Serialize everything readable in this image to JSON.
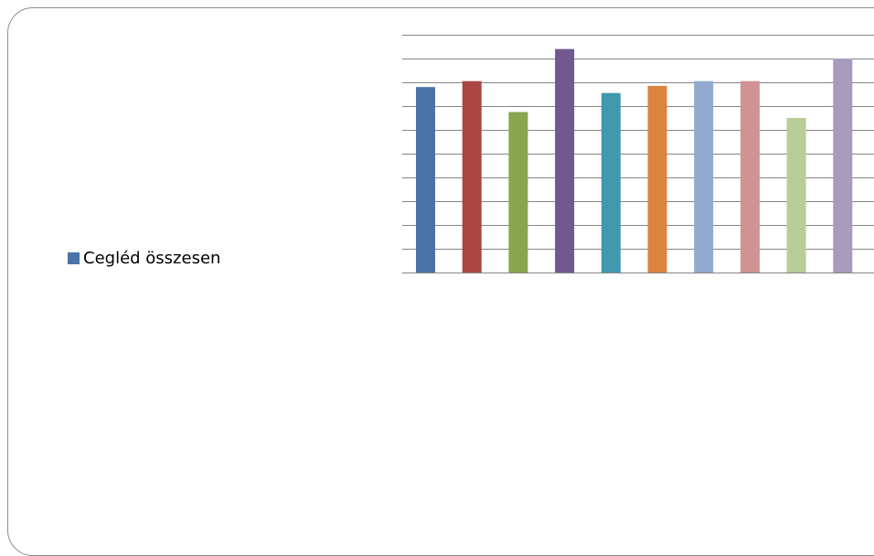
{
  "chart_data": {
    "type": "bar",
    "categories": [
      "",
      "",
      "",
      "",
      "",
      "",
      "",
      "",
      "",
      ""
    ],
    "series": [
      {
        "name": "Cegléd összesen",
        "values": [
          7.8,
          8.05,
          6.75,
          9.4,
          7.55,
          7.85,
          8.05,
          8.05,
          6.5,
          9.0
        ]
      }
    ],
    "bar_colors": [
      "#4a73a8",
      "#aa4643",
      "#89a54e",
      "#71588f",
      "#4198af",
      "#db843d",
      "#93a9cf",
      "#d19392",
      "#b9cd96",
      "#a99bbd"
    ],
    "legend_color": "#4a73a8",
    "grid_color": "#868686",
    "ylim": [
      0,
      10
    ],
    "gridlines": 10,
    "grid": true,
    "legend_position": "left",
    "title": "",
    "xlabel": "",
    "ylabel": ""
  }
}
